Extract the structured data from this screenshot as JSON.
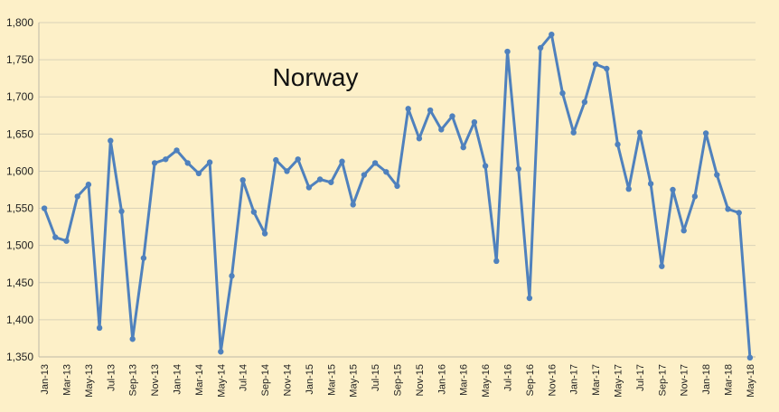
{
  "chart_data": {
    "type": "line",
    "title": "Norway",
    "xlabel": "",
    "ylabel": "",
    "ylim": [
      1350,
      1800
    ],
    "yticks": [
      1350,
      1400,
      1450,
      1500,
      1550,
      1600,
      1650,
      1700,
      1750,
      1800
    ],
    "ytick_labels": [
      "1,350",
      "1,400",
      "1,450",
      "1,500",
      "1,550",
      "1,600",
      "1,650",
      "1,700",
      "1,750",
      "1,800"
    ],
    "grid": true,
    "legend": "none",
    "line_color": "#4f81bd",
    "background_color": "#fdf0c8",
    "x_tick_labels": [
      "Jan-13",
      "Mar-13",
      "May-13",
      "Jul-13",
      "Sep-13",
      "Nov-13",
      "Jan-14",
      "Mar-14",
      "May-14",
      "Jul-14",
      "Sep-14",
      "Nov-14",
      "Jan-15",
      "Mar-15",
      "May-15",
      "Jul-15",
      "Sep-15",
      "Nov-15",
      "Jan-16",
      "Mar-16",
      "May-16",
      "Jul-16",
      "Sep-16",
      "Nov-16",
      "Jan-17",
      "Mar-17",
      "May-17",
      "Jul-17",
      "Sep-17",
      "Nov-17",
      "Jan-18",
      "Mar-18",
      "May-18"
    ],
    "series": [
      {
        "name": "Norway",
        "values": [
          1550,
          1511,
          1506,
          1566,
          1582,
          1389,
          1641,
          1546,
          1374,
          1483,
          1611,
          1616,
          1628,
          1611,
          1597,
          1612,
          1357,
          1459,
          1588,
          1545,
          1516,
          1615,
          1600,
          1616,
          1578,
          1589,
          1585,
          1613,
          1555,
          1595,
          1611,
          1599,
          1580,
          1684,
          1644,
          1682,
          1656,
          1674,
          1632,
          1666,
          1607,
          1479,
          1761,
          1603,
          1429,
          1766,
          1784,
          1705,
          1652,
          1693,
          1744,
          1738,
          1636,
          1576,
          1652,
          1583,
          1472,
          1575,
          1520,
          1566,
          1651,
          1595,
          1549,
          1544,
          1349
        ]
      }
    ]
  }
}
